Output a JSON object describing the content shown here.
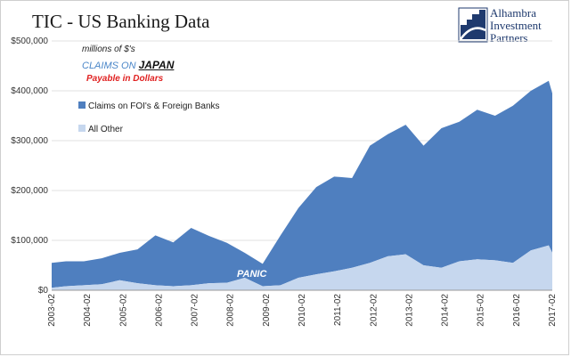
{
  "title": "TIC - US Banking Data",
  "logo": {
    "line1": "Alhambra",
    "line2": "Investment",
    "line3": "Partners"
  },
  "annotations": {
    "units": "millions of $'s",
    "claims_on": "CLAIMS ON",
    "country": "JAPAN",
    "payable": "Payable in Dollars",
    "panic": "PANIC"
  },
  "colors": {
    "foi": "#4f7fbf",
    "other": "#c6d7ee",
    "annotation_blue": "#4a86c8",
    "annotation_red": "#e02020",
    "panic": "#ffffff"
  },
  "chart_data": {
    "type": "area",
    "stacked": true,
    "ylim": [
      0,
      500000
    ],
    "y_ticks": [
      0,
      100000,
      200000,
      300000,
      400000,
      500000
    ],
    "y_tick_labels": [
      "$0",
      "$100,000",
      "$200,000",
      "$300,000",
      "$400,000",
      "$500,000"
    ],
    "x_ticks": [
      "2003-02",
      "2004-02",
      "2005-02",
      "2006-02",
      "2007-02",
      "2008-02",
      "2009-02",
      "2010-02",
      "2011-02",
      "2012-02",
      "2013-02",
      "2014-02",
      "2015-02",
      "2016-02",
      "2017-02"
    ],
    "legend_position": "left, inside plot",
    "series": [
      {
        "name": "All Other",
        "color": "#c6d7ee",
        "x": [
          2003.1,
          2003.5,
          2004.0,
          2004.5,
          2005.0,
          2005.5,
          2006.0,
          2006.5,
          2007.0,
          2007.5,
          2008.0,
          2008.5,
          2009.0,
          2009.5,
          2010.0,
          2010.5,
          2011.0,
          2011.5,
          2012.0,
          2012.5,
          2013.0,
          2013.5,
          2014.0,
          2014.5,
          2015.0,
          2015.5,
          2016.0,
          2016.5,
          2017.0,
          2017.1
        ],
        "values": [
          5000,
          8000,
          10000,
          12000,
          20000,
          14000,
          10000,
          8000,
          10000,
          14000,
          15000,
          25000,
          8000,
          10000,
          25000,
          32000,
          38000,
          45000,
          55000,
          68000,
          72000,
          50000,
          45000,
          58000,
          62000,
          60000,
          55000,
          80000,
          90000,
          75000
        ]
      },
      {
        "name": "Claims on FOI's & Foreign Banks",
        "color": "#4f7fbf",
        "x": [
          2003.1,
          2003.5,
          2004.0,
          2004.5,
          2005.0,
          2005.5,
          2006.0,
          2006.5,
          2007.0,
          2007.5,
          2008.0,
          2008.5,
          2009.0,
          2009.5,
          2010.0,
          2010.5,
          2011.0,
          2011.5,
          2012.0,
          2012.5,
          2013.0,
          2013.5,
          2014.0,
          2014.5,
          2015.0,
          2015.5,
          2016.0,
          2016.5,
          2017.0,
          2017.1
        ],
        "values": [
          50000,
          50000,
          48000,
          52000,
          55000,
          68000,
          100000,
          88000,
          115000,
          95000,
          80000,
          50000,
          45000,
          100000,
          140000,
          175000,
          190000,
          180000,
          235000,
          245000,
          260000,
          240000,
          280000,
          280000,
          300000,
          290000,
          315000,
          320000,
          330000,
          320000
        ]
      }
    ]
  }
}
